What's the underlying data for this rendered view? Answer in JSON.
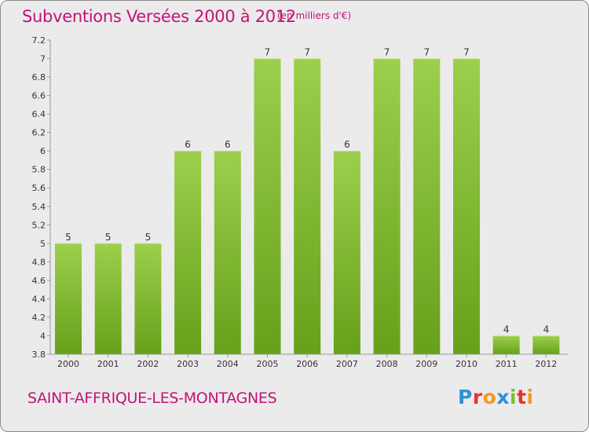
{
  "header": {
    "title": "Subventions Versées 2000 à 2012",
    "unit": "(en milliers d'€)"
  },
  "footer": {
    "commune": "SAINT-AFFRIQUE-LES-MONTAGNES",
    "logo_text": "Proxiti"
  },
  "colors": {
    "accent": "#c5117a",
    "bar_light": "#9ccf4c",
    "bar_dark": "#66a11a",
    "plot_background": "#ebebeb"
  },
  "chart_data": {
    "type": "bar",
    "title": "Subventions Versées 2000 à 2012",
    "xlabel": "",
    "ylabel": "",
    "grid": false,
    "categories": [
      "2000",
      "2001",
      "2002",
      "2003",
      "2004",
      "2005",
      "2006",
      "2007",
      "2008",
      "2009",
      "2010",
      "2011",
      "2012"
    ],
    "values": [
      5,
      5,
      5,
      6,
      6,
      7,
      7,
      6,
      7,
      7,
      7,
      4,
      4
    ],
    "data_labels": [
      "5",
      "5",
      "5",
      "6",
      "6",
      "7",
      "7",
      "6",
      "7",
      "7",
      "7",
      "4",
      "4"
    ],
    "ylim": [
      3.8,
      7.2
    ],
    "yticks": [
      3.8,
      4,
      4.2,
      4.4,
      4.6,
      4.8,
      5,
      5.2,
      5.4,
      5.6,
      5.8,
      6,
      6.2,
      6.4,
      6.6,
      6.8,
      7,
      7.2
    ],
    "ytick_labels": [
      "3.8",
      "4",
      "4.2",
      "4.4",
      "4.6",
      "4.8",
      "5",
      "5.2",
      "5.4",
      "5.6",
      "5.8",
      "6",
      "6.2",
      "6.4",
      "6.6",
      "6.8",
      "7",
      "7.2"
    ]
  }
}
